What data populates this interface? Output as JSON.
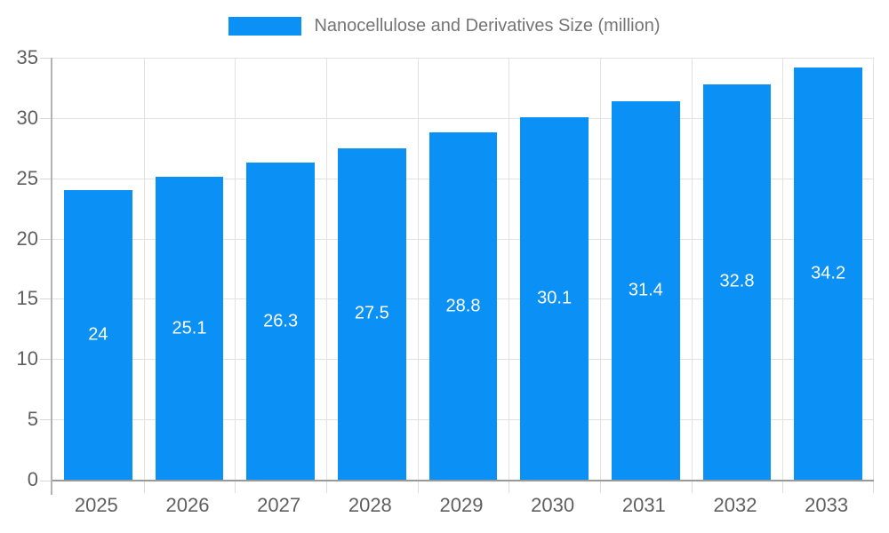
{
  "legend": {
    "label": "Nanocellulose and Derivatives Size (million)"
  },
  "chart_data": {
    "type": "bar",
    "title": "Nanocellulose and Derivatives Size (million)",
    "categories": [
      "2025",
      "2026",
      "2027",
      "2028",
      "2029",
      "2030",
      "2031",
      "2032",
      "2033"
    ],
    "values": [
      24,
      25.1,
      26.3,
      27.5,
      28.8,
      30.1,
      31.4,
      32.8,
      34.2
    ],
    "value_labels": [
      "24",
      "25.1",
      "26.3",
      "27.5",
      "28.8",
      "30.1",
      "31.4",
      "32.8",
      "34.2"
    ],
    "xlabel": "",
    "ylabel": "",
    "ylim": [
      0,
      35
    ],
    "yticks": [
      0,
      5,
      10,
      15,
      20,
      25,
      30,
      35
    ],
    "grid": true,
    "legend_position": "top",
    "bar_color": "#0b90f5",
    "value_label_color": "#ffffff",
    "axis_label_color": "#5f5f5f",
    "title_color": "#757575"
  }
}
